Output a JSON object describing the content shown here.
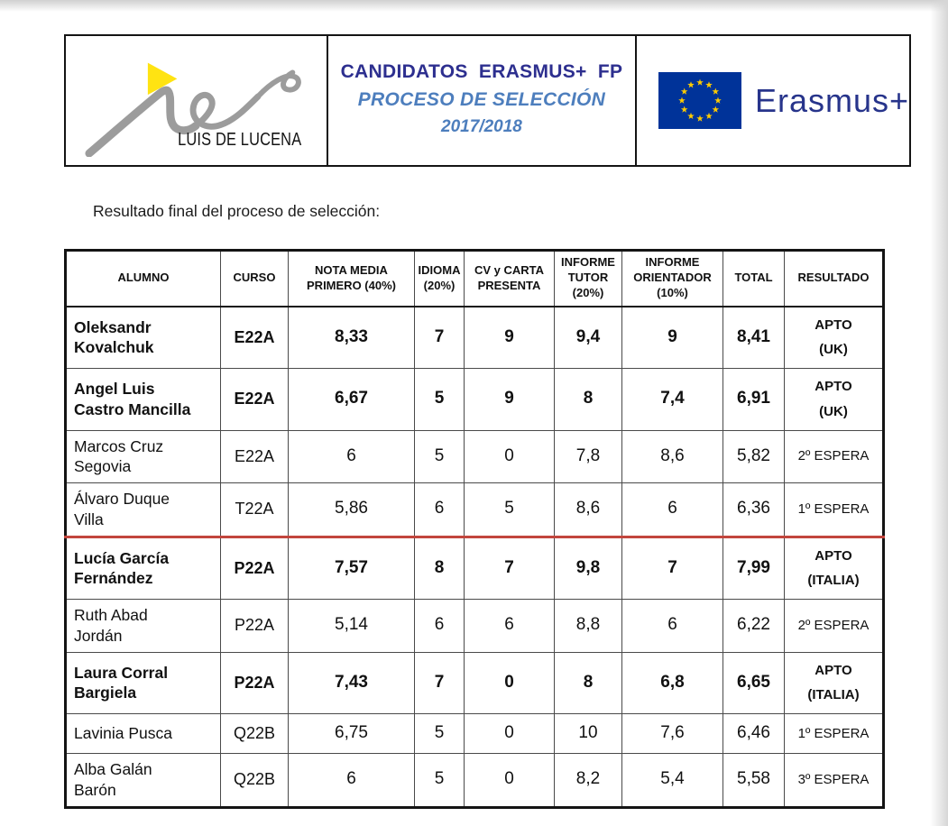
{
  "header": {
    "logo": {
      "school_name": "LUIS DE LUCENA"
    },
    "title": {
      "line1": "CANDIDATOS  ERASMUS+  FP",
      "line2": "PROCESO DE SELECCIÓN",
      "line3": "2017/2018"
    },
    "erasmus": {
      "label": "Erasmus+"
    }
  },
  "subtitle": "Resultado final del proceso de selección:",
  "table": {
    "columns": [
      "ALUMNO",
      "CURSO",
      "NOTA MEDIA\nPRIMERO (40%)",
      "IDIOMA\n(20%)",
      "CV y CARTA\nPRESENTA",
      "INFORME\nTUTOR\n(20%)",
      "INFORME\nORIENTADOR\n(10%)",
      "TOTAL",
      "RESULTADO"
    ],
    "rows": [
      {
        "alumno": "Oleksandr\nKovalchuk",
        "curso": "E22A",
        "nota_media": "8,33",
        "idioma": "7",
        "cv_carta": "9",
        "informe_tutor": "9,4",
        "informe_orientador": "9",
        "total": "8,41",
        "resultado": "APTO\n(UK)",
        "bold": true,
        "red_separator_below": false
      },
      {
        "alumno": "Angel Luis\nCastro Mancilla",
        "curso": "E22A",
        "nota_media": "6,67",
        "idioma": "5",
        "cv_carta": "9",
        "informe_tutor": "8",
        "informe_orientador": "7,4",
        "total": "6,91",
        "resultado": "APTO\n(UK)",
        "bold": true,
        "red_separator_below": false
      },
      {
        "alumno": "Marcos Cruz\nSegovia",
        "curso": "E22A",
        "nota_media": "6",
        "idioma": "5",
        "cv_carta": "0",
        "informe_tutor": "7,8",
        "informe_orientador": "8,6",
        "total": "5,82",
        "resultado": "2º ESPERA",
        "bold": false,
        "red_separator_below": false
      },
      {
        "alumno": "Álvaro Duque\nVilla",
        "curso": "T22A",
        "nota_media": "5,86",
        "idioma": "6",
        "cv_carta": "5",
        "informe_tutor": "8,6",
        "informe_orientador": "6",
        "total": "6,36",
        "resultado": "1º ESPERA",
        "bold": false,
        "red_separator_below": true
      },
      {
        "alumno": "Lucía García\nFernández",
        "curso": "P22A",
        "nota_media": "7,57",
        "idioma": "8",
        "cv_carta": "7",
        "informe_tutor": "9,8",
        "informe_orientador": "7",
        "total": "7,99",
        "resultado": "APTO\n(ITALIA)",
        "bold": true,
        "red_separator_below": false
      },
      {
        "alumno": "Ruth Abad\nJordán",
        "curso": "P22A",
        "nota_media": "5,14",
        "idioma": "6",
        "cv_carta": "6",
        "informe_tutor": "8,8",
        "informe_orientador": "6",
        "total": "6,22",
        "resultado": "2º ESPERA",
        "bold": false,
        "red_separator_below": false
      },
      {
        "alumno": "Laura Corral\nBargiela",
        "curso": "P22A",
        "nota_media": "7,43",
        "idioma": "7",
        "cv_carta": "0",
        "informe_tutor": "8",
        "informe_orientador": "6,8",
        "total": "6,65",
        "resultado": "APTO\n(ITALIA)",
        "bold": true,
        "red_separator_below": false
      },
      {
        "alumno": "Lavinia Pusca",
        "curso": "Q22B",
        "nota_media": "6,75",
        "idioma": "5",
        "cv_carta": "0",
        "informe_tutor": "10",
        "informe_orientador": "7,6",
        "total": "6,46",
        "resultado": "1º ESPERA",
        "bold": false,
        "red_separator_below": false
      },
      {
        "alumno": "Alba Galán\nBarón",
        "curso": "Q22B",
        "nota_media": "6",
        "idioma": "5",
        "cv_carta": "0",
        "informe_tutor": "8,2",
        "informe_orientador": "5,4",
        "total": "5,58",
        "resultado": "3º ESPERA",
        "bold": false,
        "red_separator_below": false
      }
    ]
  },
  "colors": {
    "title-dark": "#2d2f8f",
    "title-light": "#4d7ebd",
    "erasmus-blue": "#27348b",
    "flag-blue": "#003399",
    "star-yellow": "#ffcc00",
    "sep-red": "#c2453d",
    "logo-gray": "#9c9c9c",
    "logo-yellow": "#ffe312"
  }
}
